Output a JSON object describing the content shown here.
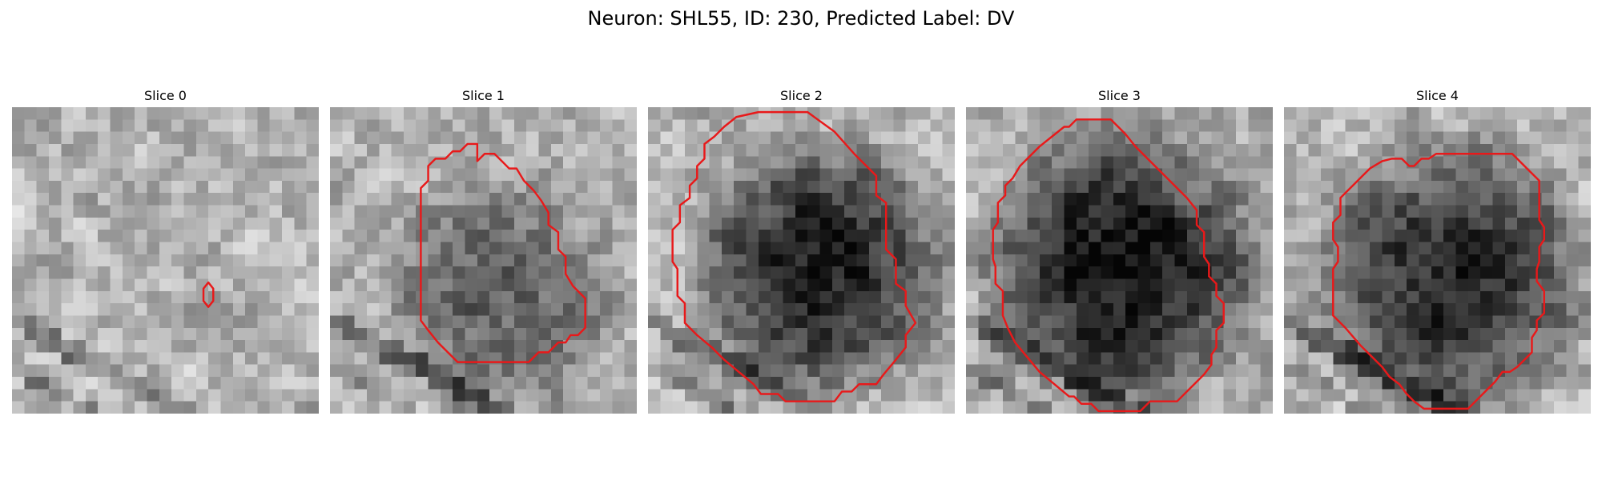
{
  "figure": {
    "title": "Neuron: SHL55, ID: 230, Predicted Label: DV"
  },
  "contour_color": "#e8191a",
  "panels": [
    {
      "title": "Slice 0",
      "seed": 11,
      "blob": {
        "cx": 10.5,
        "cy": 10.5,
        "rx": 4,
        "ry": 4,
        "depth": 0.05
      },
      "contour": [
        [
          16,
          14.3
        ],
        [
          16.4,
          14.8
        ],
        [
          16.4,
          15.8
        ],
        [
          16,
          16.3
        ],
        [
          15.6,
          15.8
        ],
        [
          15.6,
          14.8
        ]
      ]
    },
    {
      "title": "Slice 1",
      "seed": 23,
      "blob": {
        "cx": 14,
        "cy": 15.5,
        "rx": 9,
        "ry": 10,
        "depth": 0.32
      },
      "contour": [
        [
          12,
          4.4
        ],
        [
          12.6,
          3.8
        ],
        [
          13.4,
          3.8
        ],
        [
          14,
          4.4
        ],
        [
          14.6,
          5
        ],
        [
          15.2,
          5
        ],
        [
          15.8,
          6
        ],
        [
          16.6,
          6.8
        ],
        [
          17.2,
          7.6
        ],
        [
          17.8,
          8.6
        ],
        [
          17.8,
          9.6
        ],
        [
          18.6,
          10.2
        ],
        [
          18.6,
          11.6
        ],
        [
          19.2,
          12.2
        ],
        [
          19.2,
          13.6
        ],
        [
          19.8,
          14.6
        ],
        [
          20.8,
          15.6
        ],
        [
          20.8,
          18
        ],
        [
          20.2,
          18.6
        ],
        [
          19.6,
          18.6
        ],
        [
          19.2,
          19.2
        ],
        [
          18.6,
          19.2
        ],
        [
          17.8,
          20
        ],
        [
          17,
          20
        ],
        [
          16.2,
          20.8
        ],
        [
          10.4,
          20.8
        ],
        [
          9.6,
          20
        ],
        [
          8.8,
          19.2
        ],
        [
          8,
          18.2
        ],
        [
          7.4,
          17.4
        ],
        [
          7.4,
          6.6
        ],
        [
          8,
          6
        ],
        [
          8,
          4.8
        ],
        [
          8.6,
          4.2
        ],
        [
          9.4,
          4.2
        ],
        [
          10,
          3.6
        ],
        [
          10.6,
          3.6
        ],
        [
          11.2,
          3
        ],
        [
          12,
          3
        ]
      ]
    },
    {
      "title": "Slice 2",
      "seed": 37,
      "blob": {
        "cx": 14,
        "cy": 13,
        "rx": 10,
        "ry": 10,
        "depth": 0.6
      },
      "contour": [
        [
          9,
          0.4
        ],
        [
          13,
          0.4
        ],
        [
          15.2,
          2
        ],
        [
          16.8,
          3.8
        ],
        [
          18.6,
          5.6
        ],
        [
          18.6,
          7.2
        ],
        [
          19.4,
          7.8
        ],
        [
          19.4,
          11.6
        ],
        [
          20.2,
          12.4
        ],
        [
          20.2,
          14.4
        ],
        [
          21,
          15
        ],
        [
          21,
          16.2
        ],
        [
          21.8,
          17.6
        ],
        [
          21,
          18.6
        ],
        [
          21,
          19.6
        ],
        [
          20.2,
          20.6
        ],
        [
          19.2,
          21.8
        ],
        [
          18.6,
          22.6
        ],
        [
          17.2,
          22.6
        ],
        [
          16.6,
          23.2
        ],
        [
          15.8,
          23.2
        ],
        [
          15.2,
          24
        ],
        [
          11.2,
          24
        ],
        [
          10.6,
          23.4
        ],
        [
          9.2,
          23.4
        ],
        [
          8.6,
          22.6
        ],
        [
          7.4,
          21.6
        ],
        [
          6.2,
          20.6
        ],
        [
          5.2,
          19.6
        ],
        [
          4,
          18.6
        ],
        [
          3,
          17.6
        ],
        [
          3,
          16
        ],
        [
          2.4,
          15.4
        ],
        [
          2.4,
          13.2
        ],
        [
          2,
          12.6
        ],
        [
          2,
          10
        ],
        [
          2.6,
          9.4
        ],
        [
          2.6,
          8
        ],
        [
          3.4,
          7.4
        ],
        [
          3.4,
          6.4
        ],
        [
          4,
          5.8
        ],
        [
          4,
          4.8
        ],
        [
          4.6,
          4.2
        ],
        [
          4.6,
          3
        ],
        [
          5.4,
          2.4
        ],
        [
          6.2,
          1.6
        ],
        [
          7.2,
          0.8
        ]
      ]
    },
    {
      "title": "Slice 3",
      "seed": 53,
      "blob": {
        "cx": 12.5,
        "cy": 13,
        "rx": 11,
        "ry": 11,
        "depth": 0.65
      },
      "contour": [
        [
          8,
          1.6
        ],
        [
          8.4,
          1.6
        ],
        [
          9,
          1
        ],
        [
          11.8,
          1
        ],
        [
          12.4,
          1.6
        ],
        [
          13,
          2.2
        ],
        [
          13.8,
          3.2
        ],
        [
          14.8,
          4.2
        ],
        [
          15.8,
          5.2
        ],
        [
          17,
          6.4
        ],
        [
          18,
          7.4
        ],
        [
          18.8,
          8.4
        ],
        [
          18.8,
          9.6
        ],
        [
          19.4,
          10.2
        ],
        [
          19.4,
          12.2
        ],
        [
          19.8,
          12.8
        ],
        [
          19.8,
          13.8
        ],
        [
          20.4,
          14.4
        ],
        [
          20.4,
          15.4
        ],
        [
          21,
          16
        ],
        [
          21,
          17.6
        ],
        [
          20.4,
          18.2
        ],
        [
          20.4,
          19.6
        ],
        [
          20,
          20.2
        ],
        [
          20,
          21
        ],
        [
          19.4,
          21.8
        ],
        [
          18.6,
          22.6
        ],
        [
          18,
          23.2
        ],
        [
          17.2,
          24
        ],
        [
          15,
          24
        ],
        [
          14.2,
          24.8
        ],
        [
          10.8,
          24.8
        ],
        [
          10.2,
          24.2
        ],
        [
          9.4,
          24.2
        ],
        [
          8.8,
          23.6
        ],
        [
          8.4,
          23.6
        ],
        [
          7.2,
          22.6
        ],
        [
          6,
          21.6
        ],
        [
          5,
          20.4
        ],
        [
          4,
          19.2
        ],
        [
          3.4,
          18
        ],
        [
          3,
          17
        ],
        [
          3,
          15
        ],
        [
          2.4,
          14.4
        ],
        [
          2.4,
          13
        ],
        [
          2.2,
          12.4
        ],
        [
          2.2,
          10
        ],
        [
          2.6,
          9.4
        ],
        [
          2.6,
          7.8
        ],
        [
          3.2,
          7.2
        ],
        [
          3.2,
          6.4
        ],
        [
          3.8,
          5.8
        ],
        [
          4.4,
          4.8
        ],
        [
          5.2,
          4
        ],
        [
          6,
          3.2
        ],
        [
          7,
          2.4
        ]
      ]
    },
    {
      "title": "Slice 4",
      "seed": 71,
      "blob": {
        "cx": 13.5,
        "cy": 14,
        "rx": 11,
        "ry": 11,
        "depth": 0.55
      },
      "contour": [
        [
          8.8,
          4.2
        ],
        [
          9.6,
          4.2
        ],
        [
          10.2,
          4.8
        ],
        [
          10.6,
          4.8
        ],
        [
          11.2,
          4.2
        ],
        [
          11.8,
          4.2
        ],
        [
          12.4,
          3.8
        ],
        [
          18.6,
          3.8
        ],
        [
          19.8,
          5
        ],
        [
          20.8,
          6
        ],
        [
          20.8,
          8.4
        ],
        [
          20.8,
          9.2
        ],
        [
          21.2,
          9.8
        ],
        [
          21.2,
          10.8
        ],
        [
          20.8,
          11.4
        ],
        [
          20.8,
          12.6
        ],
        [
          20.6,
          13.2
        ],
        [
          20.6,
          14.2
        ],
        [
          21.2,
          15
        ],
        [
          21.2,
          16.8
        ],
        [
          20.6,
          17.4
        ],
        [
          20.6,
          18.2
        ],
        [
          20.2,
          18.8
        ],
        [
          20.2,
          20
        ],
        [
          19.6,
          20.6
        ],
        [
          19,
          21.2
        ],
        [
          18.4,
          21.6
        ],
        [
          17.8,
          21.6
        ],
        [
          17.2,
          22.4
        ],
        [
          16.4,
          23.2
        ],
        [
          15.6,
          24
        ],
        [
          15,
          24.6
        ],
        [
          11.4,
          24.6
        ],
        [
          10.6,
          24
        ],
        [
          10,
          23.4
        ],
        [
          9.4,
          22.6
        ],
        [
          8.6,
          22
        ],
        [
          8,
          21.2
        ],
        [
          7.2,
          20.4
        ],
        [
          6.2,
          19.4
        ],
        [
          5,
          18
        ],
        [
          4,
          17
        ],
        [
          4,
          13.2
        ],
        [
          4.4,
          12.6
        ],
        [
          4.4,
          11.4
        ],
        [
          4,
          10.8
        ],
        [
          4,
          9.4
        ],
        [
          4.6,
          8.8
        ],
        [
          4.6,
          7.4
        ],
        [
          5.2,
          6.8
        ],
        [
          5.8,
          6.2
        ],
        [
          6.4,
          5.6
        ],
        [
          7,
          5
        ],
        [
          8,
          4.4
        ]
      ]
    }
  ]
}
